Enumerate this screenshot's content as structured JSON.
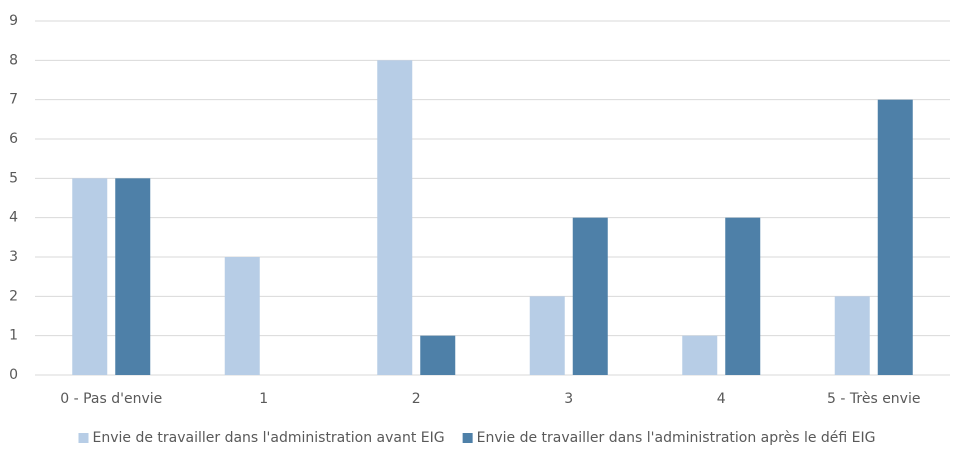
{
  "chart_data": {
    "type": "bar",
    "categories": [
      "0 - Pas d'envie",
      "1",
      "2",
      "3",
      "4",
      "5 - Très envie"
    ],
    "series": [
      {
        "name": "Envie de travailler dans l'administration avant EIG",
        "color": "#b7cde6",
        "values": [
          5,
          3,
          8,
          2,
          1,
          2
        ]
      },
      {
        "name": "Envie de travailler dans l'administration après le défi EIG",
        "color": "#4e80a8",
        "values": [
          5,
          0,
          1,
          4,
          4,
          7
        ]
      }
    ],
    "ylim": [
      0,
      9
    ],
    "yticks": [
      0,
      1,
      2,
      3,
      4,
      5,
      6,
      7,
      8,
      9
    ],
    "grid": true,
    "legend": "bottom"
  }
}
